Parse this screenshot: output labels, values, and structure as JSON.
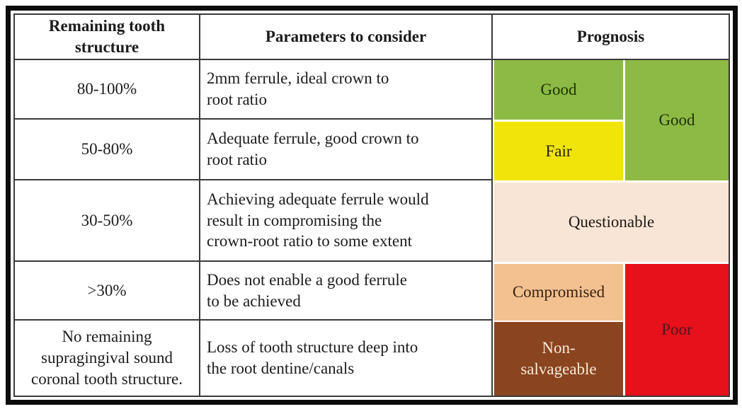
{
  "table": {
    "headers": [
      "Remaining tooth\nstructure",
      "Parameters to consider",
      "Prognosis"
    ],
    "rows": [
      {
        "structure": "80-100%",
        "parameters": "2mm ferrule, ideal crown to\nroot ratio"
      },
      {
        "structure": "50-80%",
        "parameters": "Adequate ferrule, good crown to\nroot ratio"
      },
      {
        "structure": "30-50%",
        "parameters": "Achieving adequate ferrule would\nresult in compromising the\ncrown-root ratio to some extent"
      },
      {
        "structure": ">30%",
        "parameters": "Does not enable a good ferrule\nto be achieved"
      },
      {
        "structure": "No remaining\nsupragingival sound\ncoronal tooth structure.",
        "parameters": "Loss of tooth structure deep into\nthe root dentine/canals"
      }
    ],
    "prognosis": {
      "labels": {
        "good_left": "Good",
        "good_right": "Good",
        "fair": "Fair",
        "questionable": "Questionable",
        "compromised": "Compromised",
        "non_salvageable": "Non-\nsalvageable",
        "poor": "Poor"
      },
      "colors": {
        "good": "#8cba45",
        "fair": "#f1e40b",
        "questionable": "#f8e5d5",
        "compromised": "#f3c08f",
        "non_salvageable": "#8a4420",
        "poor": "#e6111b"
      }
    }
  }
}
